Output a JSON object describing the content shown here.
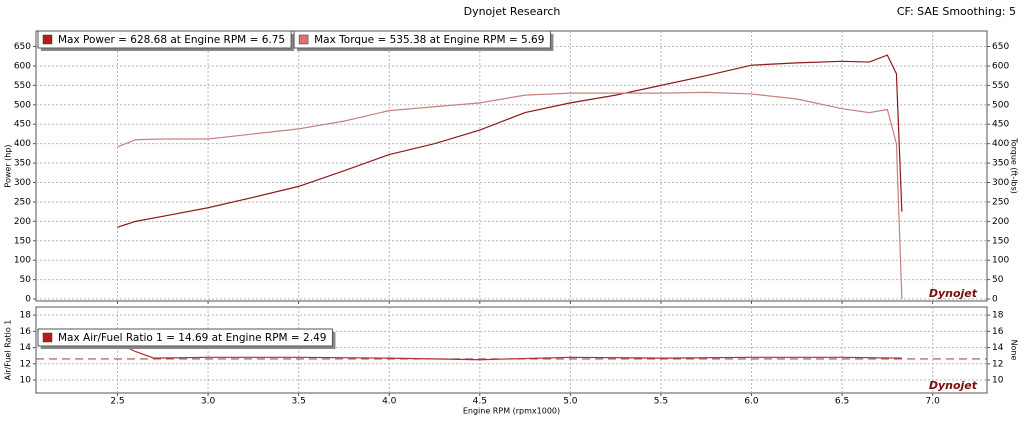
{
  "header": {
    "title": "Dynojet Research",
    "settings": "CF: SAE Smoothing: 5",
    "logo": "Dynojet"
  },
  "chart_data": [
    {
      "type": "line",
      "ylabel": "Power (hp)",
      "y2label": "Torque (ft-lbs)",
      "xlim": [
        2.05,
        7.3
      ],
      "ylim": [
        -5,
        690
      ],
      "y2lim": [
        -5,
        690
      ],
      "yticks": [
        0,
        50,
        100,
        150,
        200,
        250,
        300,
        350,
        400,
        450,
        500,
        550,
        600,
        650
      ],
      "y2ticks": [
        0,
        50,
        100,
        150,
        200,
        250,
        300,
        350,
        400,
        450,
        500,
        550,
        600,
        650
      ],
      "grid": true,
      "x": [
        2.5,
        2.6,
        2.75,
        3.0,
        3.25,
        3.5,
        3.75,
        4.0,
        4.25,
        4.5,
        4.75,
        5.0,
        5.25,
        5.5,
        5.75,
        6.0,
        6.25,
        6.5,
        6.65,
        6.75,
        6.8,
        6.83
      ],
      "series": [
        {
          "name": "Max Power = 628.68 at Engine RPM = 6.75",
          "color": "#8b1a1a",
          "values": [
            185,
            200,
            213,
            235,
            262,
            290,
            330,
            372,
            400,
            435,
            480,
            505,
            525,
            550,
            575,
            602,
            608,
            612,
            610,
            628,
            580,
            225
          ]
        },
        {
          "name": "Max Torque = 535.38 at Engine RPM = 5.69",
          "color": "#c98080",
          "axis": "y2",
          "values": [
            392,
            410,
            412,
            412,
            425,
            438,
            458,
            485,
            495,
            505,
            525,
            530,
            530,
            530,
            532,
            528,
            515,
            490,
            480,
            488,
            400,
            0
          ]
        }
      ]
    },
    {
      "type": "line",
      "ylabel": "Air/Fuel Ratio 1",
      "y2label": "None",
      "xlabel": "Engine RPM (rpmx1000)",
      "xlim": [
        2.05,
        7.3
      ],
      "ylim": [
        8.4,
        19
      ],
      "y2lim": [
        8.4,
        19
      ],
      "yticks": [
        10,
        12,
        14,
        16,
        18
      ],
      "y2ticks": [
        10,
        12,
        14,
        16,
        18
      ],
      "xticks": [
        2.5,
        {
          "value": 3,
          "label": "3.0"
        },
        3.5,
        {
          "value": 4,
          "label": "4.0"
        },
        4.5,
        {
          "value": 5,
          "label": "5.0"
        },
        5.5,
        {
          "value": 6,
          "label": "6.0"
        },
        6.5,
        {
          "value": 7,
          "label": "7.0"
        }
      ],
      "grid": true,
      "reference": 12.6,
      "reference_color": "#a05050",
      "x": [
        2.49,
        2.6,
        2.7,
        3.0,
        3.5,
        4.0,
        4.5,
        5.0,
        5.5,
        6.0,
        6.5,
        6.83
      ],
      "series": [
        {
          "name": "Max Air/Fuel Ratio 1 = 14.69 at Engine RPM = 2.49",
          "color": "#b03030",
          "values": [
            14.69,
            13.5,
            12.7,
            12.8,
            12.8,
            12.7,
            12.5,
            12.8,
            12.7,
            12.8,
            12.8,
            12.7
          ]
        }
      ]
    }
  ]
}
